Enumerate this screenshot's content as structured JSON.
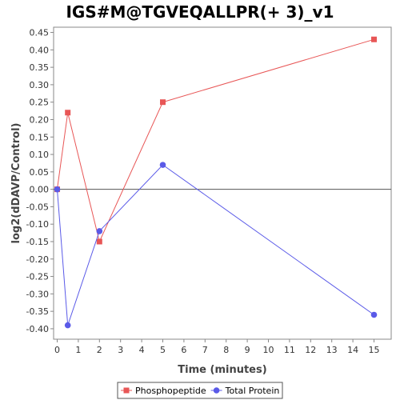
{
  "chart_data": {
    "type": "line",
    "title": "IGS#M@TGVEQALLPR(+ 3)_v1",
    "xlabel": "Time (minutes)",
    "ylabel": "log2(dDAVP/Control)",
    "xlim": [
      0,
      15.5
    ],
    "ylim": [
      -0.43,
      0.465
    ],
    "x_ticks": [
      0,
      1,
      2,
      3,
      4,
      5,
      6,
      7,
      8,
      9,
      10,
      11,
      12,
      13,
      14,
      15
    ],
    "y_ticks": [
      0.45,
      0.4,
      0.35,
      0.3,
      0.25,
      0.2,
      0.15,
      0.1,
      0.05,
      0.0,
      -0.05,
      -0.1,
      -0.15,
      -0.2,
      -0.25,
      -0.3,
      -0.35,
      -0.4
    ],
    "y_tick_labels": [
      "0.45",
      "0.40",
      "0.35",
      "0.30",
      "0.25",
      "0.20",
      "0.15",
      "0.10",
      "0.05",
      "0.00",
      "-0.05",
      "-0.10",
      "-0.15",
      "-0.20",
      "-0.25",
      "-0.30",
      "-0.35",
      "-0.40"
    ],
    "zero_line": true,
    "grid": false,
    "legend_position": "bottom",
    "series": [
      {
        "name": "Phosphopeptide",
        "color": "#e85656",
        "marker": "square",
        "x": [
          0,
          0.5,
          2,
          5,
          15
        ],
        "y": [
          0.0,
          0.22,
          -0.15,
          0.25,
          0.43
        ]
      },
      {
        "name": "Total Protein",
        "color": "#5a5ae8",
        "marker": "circle",
        "x": [
          0,
          0.5,
          2,
          5,
          15
        ],
        "y": [
          0.0,
          -0.39,
          -0.12,
          0.07,
          -0.36
        ]
      }
    ]
  }
}
